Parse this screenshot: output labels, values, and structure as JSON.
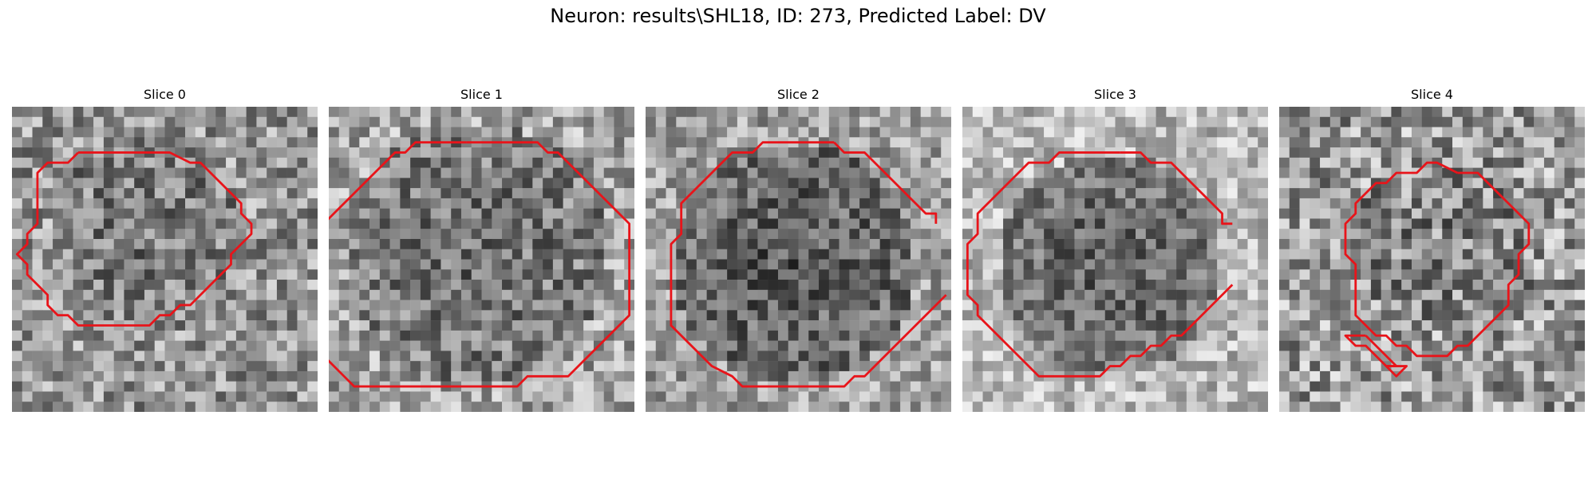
{
  "figure": {
    "title": "Neuron: results\\SHL18, ID: 273, Predicted Label: DV"
  },
  "panels": [
    {
      "title": "Slice 0",
      "contour": [
        [
          6,
          4
        ],
        [
          15,
          4
        ],
        [
          17,
          5
        ],
        [
          18,
          5
        ],
        [
          19,
          6
        ],
        [
          20,
          7
        ],
        [
          21,
          8
        ],
        [
          22,
          9
        ],
        [
          22,
          10
        ],
        [
          23,
          11
        ],
        [
          23,
          12
        ],
        [
          22,
          13
        ],
        [
          21,
          14
        ],
        [
          21,
          15
        ],
        [
          20,
          16
        ],
        [
          19,
          17
        ],
        [
          18,
          18
        ],
        [
          17,
          19
        ],
        [
          16,
          19
        ],
        [
          15,
          20
        ],
        [
          14,
          20
        ],
        [
          13,
          21
        ],
        [
          6,
          21
        ],
        [
          5,
          20
        ],
        [
          4,
          20
        ],
        [
          3,
          19
        ],
        [
          3,
          18
        ],
        [
          2,
          17
        ],
        [
          1,
          16
        ],
        [
          1,
          15
        ],
        [
          0,
          14
        ],
        [
          1,
          13
        ],
        [
          1,
          12
        ],
        [
          2,
          11
        ],
        [
          2,
          6
        ],
        [
          3,
          5
        ],
        [
          5,
          5
        ]
      ],
      "extra_contours": []
    },
    {
      "title": "Slice 1",
      "contour": [
        [
          13,
          3
        ],
        [
          20,
          3
        ],
        [
          21,
          4
        ],
        [
          22,
          4
        ],
        [
          23,
          5
        ],
        [
          24,
          6
        ],
        [
          25,
          7
        ],
        [
          26,
          8
        ],
        [
          27,
          9
        ],
        [
          28,
          10
        ],
        [
          29,
          11
        ],
        [
          29,
          20
        ],
        [
          28,
          21
        ],
        [
          27,
          22
        ],
        [
          26,
          23
        ],
        [
          25,
          24
        ],
        [
          24,
          25
        ],
        [
          23,
          26
        ],
        [
          19,
          26
        ],
        [
          18,
          27
        ],
        [
          2,
          27
        ],
        [
          1,
          26
        ],
        [
          0,
          25
        ],
        [
          -1,
          24
        ],
        [
          -1,
          22
        ]
      ],
      "extra_contours": [
        [
          [
            -1,
            11
          ],
          [
            0,
            10
          ],
          [
            1,
            9
          ],
          [
            2,
            8
          ],
          [
            3,
            7
          ],
          [
            4,
            6
          ],
          [
            5,
            5
          ],
          [
            6,
            4
          ],
          [
            7,
            4
          ],
          [
            8,
            3
          ],
          [
            13,
            3
          ]
        ]
      ]
    },
    {
      "title": "Slice 2",
      "contour": [
        [
          18,
          3
        ],
        [
          19,
          4
        ],
        [
          21,
          4
        ],
        [
          22,
          5
        ],
        [
          23,
          6
        ],
        [
          24,
          7
        ],
        [
          25,
          8
        ],
        [
          26,
          9
        ],
        [
          27,
          10
        ],
        [
          28,
          10
        ],
        [
          28,
          11
        ]
      ],
      "extra_contours": [
        [
          [
            18,
            3
          ],
          [
            11,
            3
          ],
          [
            10,
            4
          ],
          [
            8,
            4
          ],
          [
            7,
            5
          ],
          [
            6,
            6
          ],
          [
            5,
            7
          ],
          [
            4,
            8
          ],
          [
            3,
            9
          ],
          [
            3,
            12
          ],
          [
            2,
            13
          ],
          [
            2,
            21
          ],
          [
            3,
            22
          ],
          [
            4,
            23
          ],
          [
            5,
            24
          ],
          [
            6,
            25
          ],
          [
            8,
            26
          ],
          [
            9,
            27
          ],
          [
            19,
            27
          ],
          [
            20,
            26
          ],
          [
            21,
            26
          ],
          [
            22,
            25
          ],
          [
            23,
            24
          ],
          [
            24,
            23
          ],
          [
            25,
            22
          ],
          [
            26,
            21
          ],
          [
            27,
            20
          ],
          [
            28,
            19
          ],
          [
            29,
            18
          ]
        ]
      ]
    },
    {
      "title": "Slice 3",
      "contour": [
        [
          15,
          4
        ],
        [
          17,
          4
        ],
        [
          18,
          5
        ],
        [
          20,
          5
        ],
        [
          21,
          6
        ],
        [
          22,
          7
        ],
        [
          23,
          8
        ],
        [
          24,
          9
        ],
        [
          25,
          10
        ],
        [
          25,
          11
        ],
        [
          26,
          11
        ]
      ],
      "extra_contours": [
        [
          [
            15,
            4
          ],
          [
            9,
            4
          ],
          [
            8,
            5
          ],
          [
            6,
            5
          ],
          [
            5,
            6
          ],
          [
            4,
            7
          ],
          [
            3,
            8
          ],
          [
            2,
            9
          ],
          [
            1,
            10
          ],
          [
            1,
            12
          ],
          [
            0,
            13
          ],
          [
            0,
            18
          ],
          [
            1,
            19
          ],
          [
            1,
            20
          ],
          [
            2,
            21
          ],
          [
            3,
            22
          ],
          [
            4,
            23
          ],
          [
            5,
            24
          ],
          [
            6,
            25
          ],
          [
            7,
            26
          ],
          [
            13,
            26
          ],
          [
            14,
            25
          ],
          [
            15,
            25
          ],
          [
            16,
            24
          ],
          [
            17,
            24
          ],
          [
            18,
            23
          ],
          [
            19,
            23
          ],
          [
            20,
            22
          ],
          [
            21,
            22
          ],
          [
            22,
            21
          ],
          [
            23,
            20
          ],
          [
            24,
            19
          ],
          [
            25,
            18
          ],
          [
            26,
            17
          ]
        ]
      ]
    },
    {
      "title": "Slice 4",
      "contour": [
        [
          17,
          6
        ],
        [
          19,
          6
        ],
        [
          20,
          7
        ],
        [
          21,
          8
        ],
        [
          22,
          9
        ],
        [
          23,
          10
        ],
        [
          24,
          11
        ],
        [
          24,
          13
        ],
        [
          23,
          14
        ],
        [
          23,
          16
        ],
        [
          22,
          17
        ],
        [
          22,
          19
        ],
        [
          21,
          20
        ],
        [
          20,
          21
        ],
        [
          19,
          22
        ],
        [
          18,
          23
        ],
        [
          17,
          23
        ],
        [
          16,
          24
        ],
        [
          13,
          24
        ],
        [
          12,
          23
        ],
        [
          11,
          23
        ],
        [
          10,
          22
        ],
        [
          9,
          22
        ],
        [
          8,
          21
        ],
        [
          7,
          20
        ],
        [
          7,
          15
        ],
        [
          6,
          14
        ],
        [
          6,
          11
        ],
        [
          7,
          10
        ],
        [
          7,
          9
        ],
        [
          8,
          8
        ],
        [
          9,
          7
        ],
        [
          10,
          7
        ],
        [
          11,
          6
        ],
        [
          13,
          6
        ],
        [
          14,
          5
        ],
        [
          15,
          5
        ]
      ],
      "extra_contours": [
        [
          [
            8,
            22
          ],
          [
            9,
            23
          ],
          [
            10,
            24
          ],
          [
            11,
            25
          ],
          [
            10,
            25
          ],
          [
            9,
            24
          ],
          [
            8,
            23
          ],
          [
            7,
            23
          ],
          [
            6,
            22
          ],
          [
            7,
            22
          ]
        ],
        [
          [
            11,
            25
          ],
          [
            12,
            25
          ],
          [
            11,
            26
          ],
          [
            10,
            25
          ]
        ]
      ]
    }
  ]
}
